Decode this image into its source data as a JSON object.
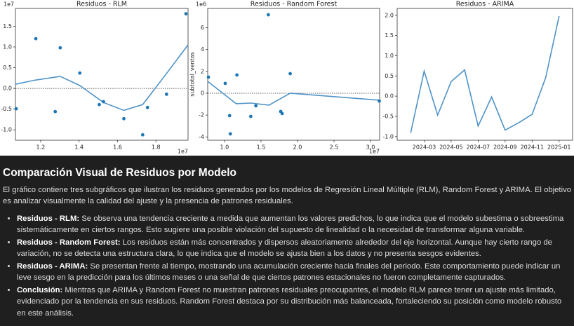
{
  "chart_data": [
    {
      "type": "scatter",
      "title": "Residuos - RLM",
      "color": "#1f77b4",
      "line_color": "#4f93c8",
      "x": [
        1.073,
        1.175,
        1.276,
        1.302,
        1.404,
        1.505,
        1.527,
        1.633,
        1.731,
        1.756,
        1.855,
        1.956
      ],
      "values": [
        -0.49,
        1.2,
        -0.56,
        0.98,
        0.37,
        -0.39,
        -0.32,
        -0.73,
        -1.12,
        -0.46,
        -0.14,
        1.8
      ],
      "trend": {
        "x": [
          1.069,
          1.171,
          1.302,
          1.404,
          1.527,
          1.633,
          1.731,
          1.855,
          1.967
        ],
        "values": [
          0.1,
          0.2,
          0.29,
          0.07,
          -0.34,
          -0.53,
          -0.39,
          0.36,
          1.05
        ]
      },
      "hline": 0,
      "xlim": [
        1.069,
        1.967
      ],
      "ylim": [
        -1.25,
        1.93
      ],
      "xticks": [
        1.2,
        1.4,
        1.6,
        1.8
      ],
      "yticks": [
        1.5,
        {
          "value": 1,
          "label": "1.0"
        },
        0.5,
        {
          "value": 0,
          "label": "0.0"
        },
        -0.5,
        {
          "value": -1,
          "label": "-1.0"
        }
      ],
      "y_offset_label": "1e7",
      "x_offset_label": "1e7"
    },
    {
      "type": "scatter",
      "title": "Residuos - Random Forest",
      "ylabel": "subtotal_ventas",
      "color": "#1f77b4",
      "line_color": "#4f93c8",
      "x": [
        0.78,
        1.01,
        1.07,
        1.08,
        1.17,
        1.36,
        1.43,
        1.6,
        1.77,
        1.79,
        1.9,
        3.12
      ],
      "values": [
        1.47,
        0.9,
        -2.05,
        -3.72,
        1.67,
        -2.12,
        -1.15,
        7.18,
        -1.67,
        -1.86,
        1.79,
        -0.71
      ],
      "trend": {
        "x": [
          0.77,
          1.16,
          1.36,
          1.61,
          1.9,
          3.125
        ],
        "values": [
          1.09,
          -0.96,
          -0.9,
          -1.09,
          0.0,
          -0.64
        ]
      },
      "hline": 0,
      "xlim": [
        0.77,
        3.125
      ],
      "ylim": [
        -4.3,
        7.76
      ],
      "xticks": [
        {
          "value": 1,
          "label": "1.0"
        },
        1.5,
        {
          "value": 2,
          "label": "2.0"
        },
        2.5,
        {
          "value": 3,
          "label": "3.0"
        }
      ],
      "yticks": [
        6,
        4,
        2,
        0,
        -2,
        -4
      ],
      "y_offset_label": "1e6",
      "x_offset_label": "1e7"
    },
    {
      "type": "line",
      "title": "Residuos - ARIMA",
      "color": "#4f93c8",
      "x": [
        "2024-02",
        "2024-03",
        "2024-04",
        "2024-05",
        "2024-06",
        "2024-07",
        "2024-08",
        "2024-09",
        "2024-10",
        "2024-11",
        "2024-12",
        "2025-01"
      ],
      "values": [
        -0.91,
        0.62,
        -0.47,
        0.36,
        0.65,
        -0.74,
        -0.02,
        -0.84,
        -0.66,
        -0.45,
        0.45,
        1.98
      ],
      "xlim": [
        "2024-01",
        "2025-02"
      ],
      "ylim": [
        -1.09,
        2.17
      ],
      "xticks": [
        "2024-03",
        "2024-05",
        "2024-07",
        "2024-09",
        "2024-11",
        "2025-01"
      ],
      "yticks": [
        {
          "value": 2,
          "label": "2.0"
        },
        1.5,
        {
          "value": 1,
          "label": "1.0"
        },
        0.5,
        {
          "value": 0,
          "label": "0.0"
        },
        -0.5,
        {
          "value": -1,
          "label": "-1.0"
        }
      ]
    }
  ],
  "section": {
    "title": "Comparación Visual de Residuos por Modelo",
    "paragraph": "El gráfico contiene tres subgráficos que ilustran los residuos generados por los modelos de Regresión Lineal Múltiple (RLM), Random Forest y ARIMA. El objetivo es analizar visualmente la calidad del ajuste y la presencia de patrones residuales.",
    "items": [
      {
        "label": "Residuos - RLM:",
        "text": "Se observa una tendencia creciente a medida que aumentan los valores predichos, lo que indica que el modelo subestima o sobreestima sistemáticamente en ciertos rangos. Esto sugiere una posible violación del supuesto de linealidad o la necesidad de transformar alguna variable."
      },
      {
        "label": "Residuos - Random Forest:",
        "text": "Los residuos están más concentrados y dispersos aleatoriamente alrededor del eje horizontal. Aunque hay cierto rango de variación, no se detecta una estructura clara, lo que indica que el modelo se ajusta bien a los datos y no presenta sesgos evidentes."
      },
      {
        "label": "Residuos - ARIMA:",
        "text": "Se presentan frente al tiempo, mostrando una acumulación creciente hacia finales del periodo. Este comportamiento puede indicar un leve sesgo en la predicción para los últimos meses o una señal de que ciertos patrones estacionales no fueron completamente capturados."
      },
      {
        "label": "Conclusión:",
        "text": "Mientras que ARIMA y Random Forest no muestran patrones residuales preocupantes, el modelo RLM parece tener un ajuste más limitado, evidenciado por la tendencia en sus residuos. Random Forest destaca por su distribución más balanceada, fortaleciendo su posición como modelo robusto en este análisis."
      }
    ]
  }
}
